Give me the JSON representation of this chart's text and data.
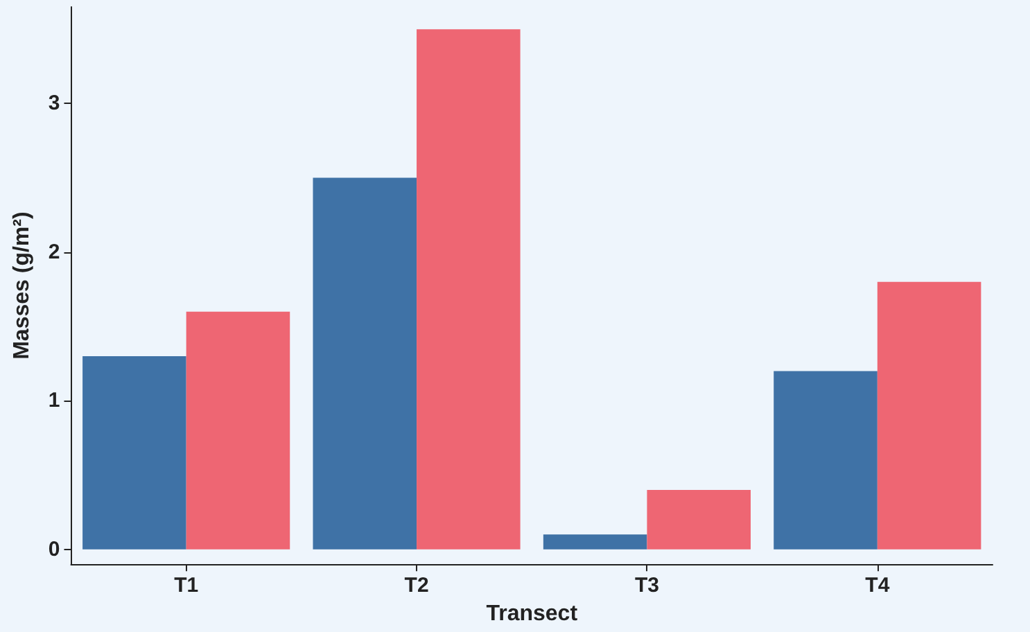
{
  "chart_data": {
    "type": "bar",
    "xlabel": "Transect",
    "ylabel": "Masses (g/m²)",
    "categories": [
      "T1",
      "T2",
      "T3",
      "T4"
    ],
    "series": [
      {
        "color": "#3f72a6",
        "values": [
          1.3,
          2.5,
          0.1,
          1.2
        ]
      },
      {
        "color": "#ee6673",
        "values": [
          1.6,
          3.5,
          0.4,
          1.8
        ]
      }
    ],
    "ylim": [
      -0.1,
      3.65
    ],
    "yticks": [
      0,
      1,
      2,
      3
    ],
    "grid": false
  }
}
